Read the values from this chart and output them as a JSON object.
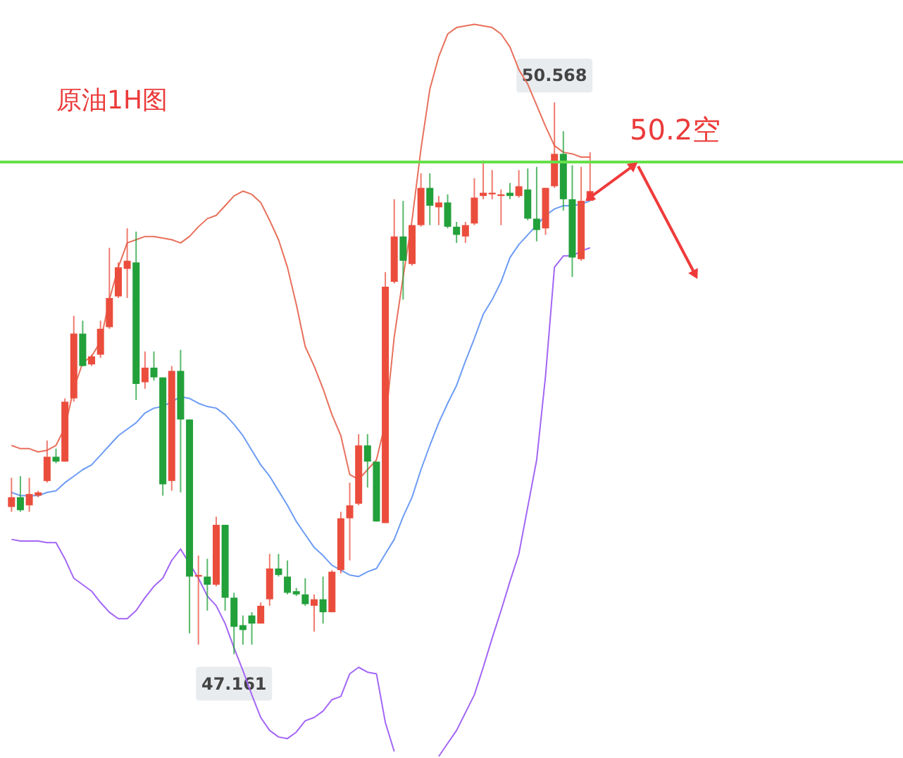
{
  "chart_data": {
    "type": "candlestick",
    "title": "原油1H图",
    "categories": [
      null,
      null,
      null,
      null,
      null,
      null,
      null,
      null,
      null,
      null,
      null,
      null,
      null,
      null,
      null,
      null,
      null,
      null,
      null,
      null,
      null,
      null,
      null,
      null,
      null,
      null,
      null,
      null,
      null,
      null,
      null,
      null,
      null,
      null,
      null,
      null,
      null,
      null,
      null,
      null,
      null,
      null,
      null,
      null,
      null,
      null,
      null,
      null,
      null,
      null,
      null,
      null,
      null,
      null,
      null,
      null,
      null,
      null,
      null,
      null,
      null,
      null,
      null,
      null,
      null,
      null
    ],
    "ohlc": [
      [
        48.07,
        48.25,
        48.04,
        48.13
      ],
      [
        48.13,
        48.26,
        48.04,
        48.05
      ],
      [
        48.08,
        48.25,
        48.04,
        48.15
      ],
      [
        48.14,
        48.17,
        48.13,
        48.16
      ],
      [
        48.23,
        48.48,
        48.22,
        48.38
      ],
      [
        48.38,
        48.43,
        48.34,
        48.35
      ],
      [
        48.35,
        48.74,
        48.35,
        48.72
      ],
      [
        48.74,
        49.25,
        48.72,
        49.14
      ],
      [
        49.14,
        49.22,
        48.94,
        48.94
      ],
      [
        48.95,
        49.01,
        48.94,
        49.0
      ],
      [
        49.01,
        49.22,
        48.99,
        49.17
      ],
      [
        49.18,
        49.67,
        49.17,
        49.36
      ],
      [
        49.37,
        49.58,
        49.36,
        49.55
      ],
      [
        49.54,
        49.79,
        49.36,
        49.59
      ],
      [
        49.58,
        49.77,
        48.73,
        48.83
      ],
      [
        48.84,
        49.03,
        48.8,
        48.93
      ],
      [
        48.93,
        49.03,
        48.85,
        48.87
      ],
      [
        48.87,
        48.87,
        48.14,
        48.21
      ],
      [
        48.23,
        48.94,
        48.17,
        48.91
      ],
      [
        48.91,
        49.04,
        48.16,
        48.61
      ],
      [
        48.61,
        48.61,
        47.29,
        47.64
      ],
      [
        47.64,
        47.77,
        47.22,
        47.65
      ],
      [
        47.64,
        47.75,
        47.43,
        47.59
      ],
      [
        47.59,
        48.01,
        47.58,
        47.96
      ],
      [
        47.96,
        47.96,
        47.43,
        47.51
      ],
      [
        47.51,
        47.54,
        47.161,
        47.33
      ],
      [
        47.34,
        47.4,
        47.22,
        47.31
      ],
      [
        47.4,
        47.42,
        47.22,
        47.35
      ],
      [
        47.35,
        47.48,
        47.35,
        47.46
      ],
      [
        47.5,
        47.78,
        47.46,
        47.69
      ],
      [
        47.69,
        47.78,
        47.64,
        47.65
      ],
      [
        47.64,
        47.74,
        47.53,
        47.54
      ],
      [
        47.55,
        47.57,
        47.52,
        47.53
      ],
      [
        47.53,
        47.63,
        47.46,
        47.47
      ],
      [
        47.46,
        47.53,
        47.3,
        47.5
      ],
      [
        47.5,
        47.64,
        47.35,
        47.42
      ],
      [
        47.42,
        47.68,
        47.42,
        47.67
      ],
      [
        47.68,
        48.04,
        47.66,
        48.0
      ],
      [
        48.0,
        48.22,
        47.74,
        48.08
      ],
      [
        48.09,
        48.52,
        48.08,
        48.45
      ],
      [
        48.45,
        48.52,
        48.19,
        48.35
      ],
      [
        48.35,
        48.35,
        47.98,
        47.98
      ],
      [
        47.97,
        49.52,
        47.97,
        49.43
      ],
      [
        49.46,
        49.97,
        49.45,
        49.74
      ],
      [
        49.74,
        49.96,
        49.35,
        49.59
      ],
      [
        49.57,
        49.81,
        49.56,
        49.81
      ],
      [
        49.81,
        50.13,
        49.8,
        50.04
      ],
      [
        50.04,
        50.13,
        49.81,
        49.93
      ],
      [
        49.92,
        49.99,
        49.81,
        49.95
      ],
      [
        49.95,
        50.0,
        49.79,
        49.8
      ],
      [
        49.8,
        49.83,
        49.7,
        49.75
      ],
      [
        49.74,
        49.83,
        49.7,
        49.81
      ],
      [
        49.82,
        50.1,
        49.81,
        49.98
      ],
      [
        49.99,
        50.21,
        49.97,
        50.01
      ],
      [
        50.0,
        50.15,
        49.97,
        50.01
      ],
      [
        49.99,
        50.03,
        49.81,
        50.0
      ],
      [
        50.01,
        50.07,
        49.97,
        49.99
      ],
      [
        49.99,
        50.15,
        49.98,
        50.05
      ],
      [
        50.03,
        50.16,
        49.84,
        49.85
      ],
      [
        49.85,
        50.17,
        49.71,
        49.78
      ],
      [
        49.79,
        50.04,
        49.75,
        50.04
      ],
      [
        50.05,
        50.568,
        50.04,
        50.25
      ],
      [
        50.25,
        50.39,
        49.9,
        49.97
      ],
      [
        49.97,
        50.18,
        49.49,
        49.61
      ],
      [
        49.6,
        50.17,
        49.59,
        49.96
      ],
      [
        49.96,
        50.26,
        49.96,
        50.02
      ]
    ],
    "colors": [
      "#eb4d3d",
      "#22a03a",
      "#eb4d3d",
      "#eb4d3d",
      "#eb4d3d",
      "#22a03a",
      "#eb4d3d",
      "#eb4d3d",
      "#22a03a",
      "#eb4d3d",
      "#eb4d3d",
      "#eb4d3d",
      "#eb4d3d",
      "#eb4d3d",
      "#22a03a",
      "#eb4d3d",
      "#22a03a",
      "#22a03a",
      "#eb4d3d",
      "#22a03a",
      "#22a03a",
      "#eb4d3d",
      "#22a03a",
      "#eb4d3d",
      "#22a03a",
      "#22a03a",
      "#22a03a",
      "#22a03a",
      "#eb4d3d",
      "#eb4d3d",
      "#22a03a",
      "#22a03a",
      "#22a03a",
      "#22a03a",
      "#eb4d3d",
      "#22a03a",
      "#eb4d3d",
      "#eb4d3d",
      "#eb4d3d",
      "#eb4d3d",
      "#22a03a",
      "#22a03a",
      "#eb4d3d",
      "#eb4d3d",
      "#22a03a",
      "#eb4d3d",
      "#eb4d3d",
      "#22a03a",
      "#eb4d3d",
      "#22a03a",
      "#22a03a",
      "#eb4d3d",
      "#eb4d3d",
      "#eb4d3d",
      "#eb4d3d",
      "#eb4d3d",
      "#22a03a",
      "#eb4d3d",
      "#22a03a",
      "#22a03a",
      "#eb4d3d",
      "#eb4d3d",
      "#22a03a",
      "#22a03a",
      "#eb4d3d",
      "#eb4d3d"
    ],
    "series": [
      {
        "type": "line",
        "color": "#e8705c",
        "values": [
          48.45,
          48.43,
          48.43,
          48.41,
          48.42,
          48.45,
          48.56,
          48.8,
          48.96,
          49.0,
          49.09,
          49.35,
          49.55,
          49.7,
          49.72,
          49.74,
          49.74,
          49.73,
          49.72,
          49.7,
          49.74,
          49.8,
          49.85,
          49.87,
          49.93,
          49.99,
          50.02,
          50.0,
          49.95,
          49.84,
          49.72,
          49.55,
          49.32,
          49.06,
          48.94,
          48.8,
          48.64,
          48.51,
          48.27,
          48.24,
          48.3,
          48.36,
          48.59,
          49.12,
          49.49,
          49.84,
          50.28,
          50.65,
          50.85,
          50.99,
          51.03,
          51.04,
          51.05,
          51.04,
          51.03,
          50.99,
          50.91,
          50.77,
          50.68,
          50.55,
          50.42,
          50.3,
          50.26,
          50.25,
          50.23,
          50.23
        ]
      },
      {
        "type": "line",
        "color": "#6d9cf5",
        "values": [
          48.16,
          48.14,
          48.14,
          48.14,
          48.16,
          48.17,
          48.22,
          48.26,
          48.3,
          48.33,
          48.39,
          48.45,
          48.51,
          48.55,
          48.59,
          48.65,
          48.68,
          48.69,
          48.72,
          48.75,
          48.74,
          48.71,
          48.69,
          48.68,
          48.64,
          48.58,
          48.51,
          48.42,
          48.33,
          48.26,
          48.17,
          48.08,
          47.98,
          47.9,
          47.82,
          47.77,
          47.71,
          47.68,
          47.65,
          47.64,
          47.67,
          47.69,
          47.78,
          47.87,
          48.01,
          48.13,
          48.3,
          48.45,
          48.59,
          48.71,
          48.82,
          48.97,
          49.11,
          49.26,
          49.35,
          49.46,
          49.61,
          49.69,
          49.75,
          49.81,
          49.87,
          49.91,
          49.93,
          49.93,
          49.94,
          49.96
        ]
      },
      {
        "type": "line",
        "color": "#a366f5",
        "values": [
          47.87,
          47.86,
          47.86,
          47.86,
          47.85,
          47.85,
          47.75,
          47.63,
          47.59,
          47.55,
          47.48,
          47.42,
          47.38,
          47.38,
          47.43,
          47.51,
          47.58,
          47.63,
          47.74,
          47.81,
          47.72,
          47.63,
          47.52,
          47.46,
          47.35,
          47.2,
          47.06,
          46.91,
          46.77,
          46.69,
          46.65,
          46.64,
          46.68,
          46.75,
          46.77,
          46.81,
          46.88,
          46.9,
          47.04,
          47.08,
          47.05,
          47.04,
          46.74,
          46.56,
          null,
          null,
          null,
          null,
          46.53,
          46.61,
          46.69,
          46.8,
          46.91,
          47.08,
          47.26,
          47.43,
          47.61,
          47.78,
          48.07,
          48.36,
          48.88,
          49.55,
          49.62,
          49.62,
          49.65,
          49.67
        ]
      }
    ],
    "ylim": [
      46.52,
      51.2
    ],
    "tick_labels": false,
    "ref_lines": [
      {
        "axis": "y",
        "value": 50.2,
        "label": "50.2空",
        "color": "#66e04a"
      }
    ],
    "annotations": [
      {
        "text": "50.568",
        "y": 50.568
      },
      {
        "text": "47.161",
        "y": 47.161
      }
    ]
  }
}
